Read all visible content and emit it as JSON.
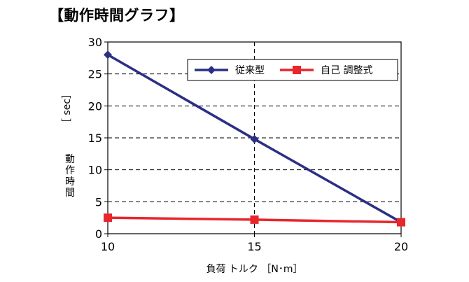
{
  "title": "【動作時間グラフ】",
  "chart_data": {
    "type": "line",
    "title": "【動作時間グラフ】",
    "xlabel": "負荷 トルク ［N･m］",
    "ylabel_unit": "［ sec］",
    "ylabel": "動作時間",
    "x": [
      10,
      15,
      20
    ],
    "xlim": [
      10,
      20
    ],
    "xticks": [
      "10",
      "15",
      "20"
    ],
    "ylim": [
      0,
      30
    ],
    "yticks": [
      "0",
      "5",
      "10",
      "15",
      "20",
      "25",
      "30"
    ],
    "grid": true,
    "legend_position": "top-right",
    "series": [
      {
        "name": "従来型",
        "values": [
          28,
          14.8,
          1.8
        ],
        "color": "#2b2f85",
        "marker": "diamond"
      },
      {
        "name": "自己 調整式",
        "values": [
          2.5,
          2.2,
          1.8
        ],
        "color": "#e8262c",
        "marker": "square"
      }
    ]
  }
}
